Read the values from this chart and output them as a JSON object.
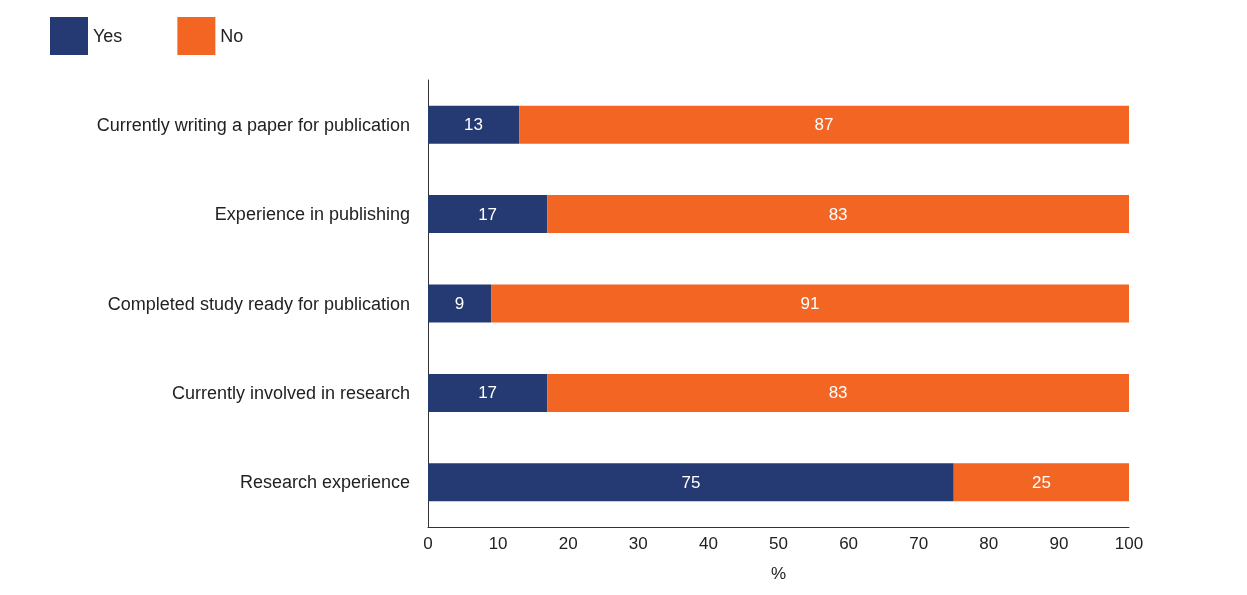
{
  "chart_data": {
    "type": "bar",
    "orientation": "horizontal",
    "stacked": true,
    "xlabel": "%",
    "categories": [
      "Currently writing a paper for publication",
      "Experience in publishing",
      "Completed study ready for publication",
      "Currently involved in research",
      "Research experience"
    ],
    "series": [
      {
        "name": "Yes",
        "color": "#253a72",
        "values": [
          13,
          17,
          9,
          17,
          75
        ]
      },
      {
        "name": "No",
        "color": "#f26522",
        "values": [
          87,
          83,
          91,
          83,
          25
        ]
      }
    ],
    "xlim": [
      0,
      100
    ],
    "xticks": [
      0,
      10,
      20,
      30,
      40,
      50,
      60,
      70,
      80,
      90,
      100
    ],
    "data_labels": true,
    "grid": false,
    "legend": "top left"
  }
}
